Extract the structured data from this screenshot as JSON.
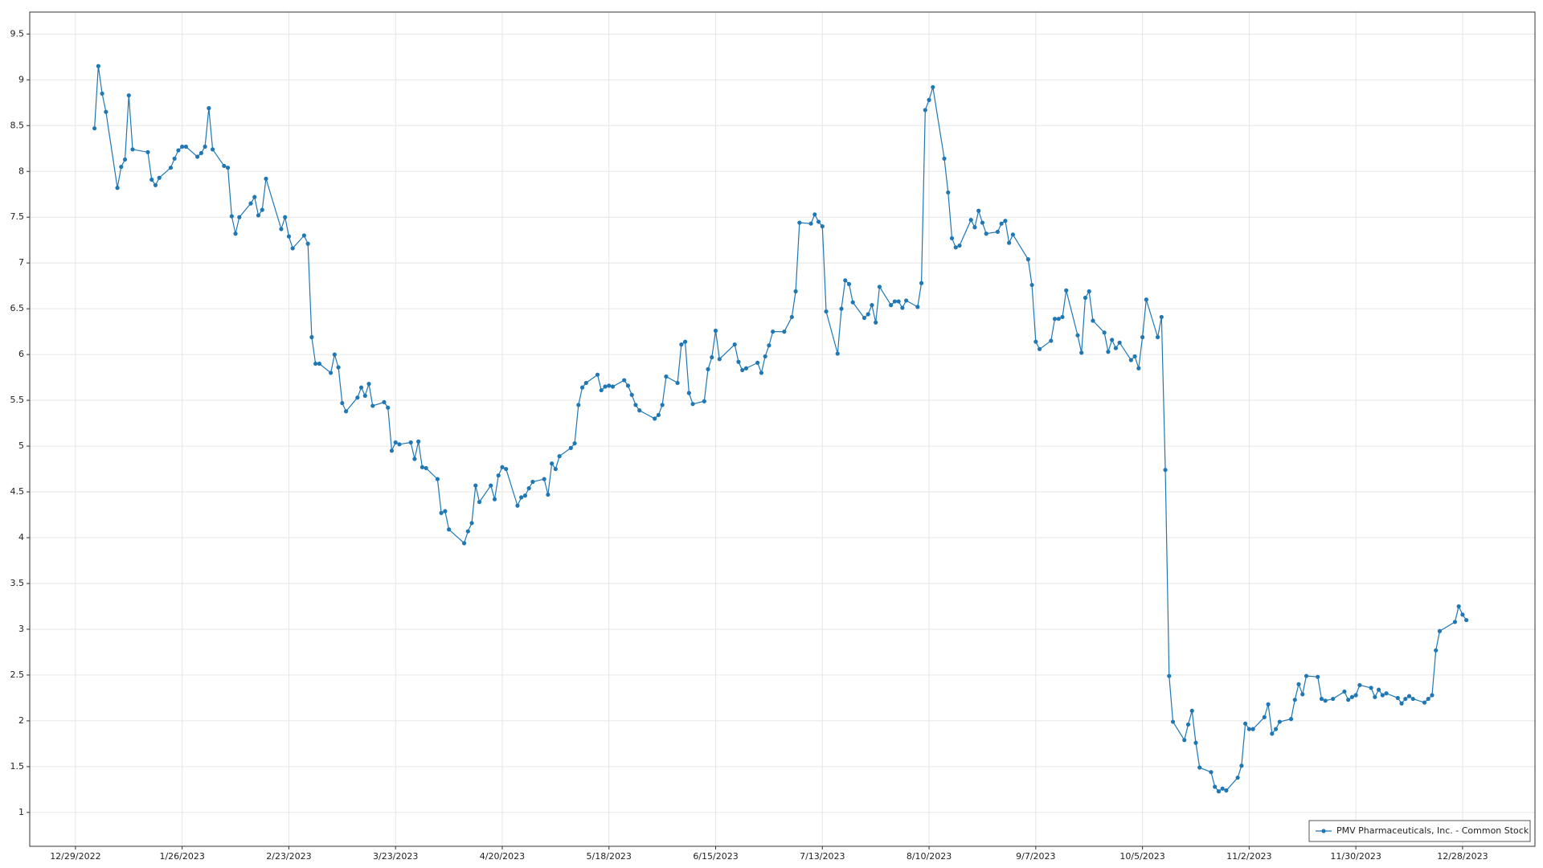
{
  "chart_data": {
    "type": "line",
    "x": [
      "1/3/2023",
      "1/4/2023",
      "1/5/2023",
      "1/6/2023",
      "1/9/2023",
      "1/10/2023",
      "1/11/2023",
      "1/12/2023",
      "1/13/2023",
      "1/17/2023",
      "1/18/2023",
      "1/19/2023",
      "1/20/2023",
      "1/23/2023",
      "1/24/2023",
      "1/25/2023",
      "1/26/2023",
      "1/27/2023",
      "1/30/2023",
      "1/31/2023",
      "2/1/2023",
      "2/2/2023",
      "2/3/2023",
      "2/6/2023",
      "2/7/2023",
      "2/8/2023",
      "2/9/2023",
      "2/10/2023",
      "2/13/2023",
      "2/14/2023",
      "2/15/2023",
      "2/16/2023",
      "2/17/2023",
      "2/21/2023",
      "2/22/2023",
      "2/23/2023",
      "2/24/2023",
      "2/27/2023",
      "2/28/2023",
      "3/1/2023",
      "3/2/2023",
      "3/3/2023",
      "3/6/2023",
      "3/7/2023",
      "3/8/2023",
      "3/9/2023",
      "3/10/2023",
      "3/13/2023",
      "3/14/2023",
      "3/15/2023",
      "3/16/2023",
      "3/17/2023",
      "3/20/2023",
      "3/21/2023",
      "3/22/2023",
      "3/23/2023",
      "3/24/2023",
      "3/27/2023",
      "3/28/2023",
      "3/29/2023",
      "3/30/2023",
      "3/31/2023",
      "4/3/2023",
      "4/4/2023",
      "4/5/2023",
      "4/6/2023",
      "4/10/2023",
      "4/11/2023",
      "4/12/2023",
      "4/13/2023",
      "4/14/2023",
      "4/17/2023",
      "4/18/2023",
      "4/19/2023",
      "4/20/2023",
      "4/21/2023",
      "4/24/2023",
      "4/25/2023",
      "4/26/2023",
      "4/27/2023",
      "4/28/2023",
      "5/1/2023",
      "5/2/2023",
      "5/3/2023",
      "5/4/2023",
      "5/5/2023",
      "5/8/2023",
      "5/9/2023",
      "5/10/2023",
      "5/11/2023",
      "5/12/2023",
      "5/15/2023",
      "5/16/2023",
      "5/17/2023",
      "5/18/2023",
      "5/19/2023",
      "5/22/2023",
      "5/23/2023",
      "5/24/2023",
      "5/25/2023",
      "5/26/2023",
      "5/30/2023",
      "5/31/2023",
      "6/1/2023",
      "6/2/2023",
      "6/5/2023",
      "6/6/2023",
      "6/7/2023",
      "6/8/2023",
      "6/9/2023",
      "6/12/2023",
      "6/13/2023",
      "6/14/2023",
      "6/15/2023",
      "6/16/2023",
      "6/20/2023",
      "6/21/2023",
      "6/22/2023",
      "6/23/2023",
      "6/26/2023",
      "6/27/2023",
      "6/28/2023",
      "6/29/2023",
      "6/30/2023",
      "7/3/2023",
      "7/5/2023",
      "7/6/2023",
      "7/7/2023",
      "7/10/2023",
      "7/11/2023",
      "7/12/2023",
      "7/13/2023",
      "7/14/2023",
      "7/17/2023",
      "7/18/2023",
      "7/19/2023",
      "7/20/2023",
      "7/21/2023",
      "7/24/2023",
      "7/25/2023",
      "7/26/2023",
      "7/27/2023",
      "7/28/2023",
      "7/31/2023",
      "8/1/2023",
      "8/2/2023",
      "8/3/2023",
      "8/4/2023",
      "8/7/2023",
      "8/8/2023",
      "8/9/2023",
      "8/10/2023",
      "8/11/2023",
      "8/14/2023",
      "8/15/2023",
      "8/16/2023",
      "8/17/2023",
      "8/18/2023",
      "8/21/2023",
      "8/22/2023",
      "8/23/2023",
      "8/24/2023",
      "8/25/2023",
      "8/28/2023",
      "8/29/2023",
      "8/30/2023",
      "8/31/2023",
      "9/1/2023",
      "9/5/2023",
      "9/6/2023",
      "9/7/2023",
      "9/8/2023",
      "9/11/2023",
      "9/12/2023",
      "9/13/2023",
      "9/14/2023",
      "9/15/2023",
      "9/18/2023",
      "9/19/2023",
      "9/20/2023",
      "9/21/2023",
      "9/22/2023",
      "9/25/2023",
      "9/26/2023",
      "9/27/2023",
      "9/28/2023",
      "9/29/2023",
      "10/2/2023",
      "10/3/2023",
      "10/4/2023",
      "10/5/2023",
      "10/6/2023",
      "10/9/2023",
      "10/10/2023",
      "10/11/2023",
      "10/12/2023",
      "10/13/2023",
      "10/16/2023",
      "10/17/2023",
      "10/18/2023",
      "10/19/2023",
      "10/20/2023",
      "10/23/2023",
      "10/24/2023",
      "10/25/2023",
      "10/26/2023",
      "10/27/2023",
      "10/30/2023",
      "10/31/2023",
      "11/1/2023",
      "11/2/2023",
      "11/3/2023",
      "11/6/2023",
      "11/7/2023",
      "11/8/2023",
      "11/9/2023",
      "11/10/2023",
      "11/13/2023",
      "11/14/2023",
      "11/15/2023",
      "11/16/2023",
      "11/17/2023",
      "11/20/2023",
      "11/21/2023",
      "11/22/2023",
      "11/24/2023",
      "11/27/2023",
      "11/28/2023",
      "11/29/2023",
      "11/30/2023",
      "12/1/2023",
      "12/4/2023",
      "12/5/2023",
      "12/6/2023",
      "12/7/2023",
      "12/8/2023",
      "12/11/2023",
      "12/12/2023",
      "12/13/2023",
      "12/14/2023",
      "12/15/2023",
      "12/18/2023",
      "12/19/2023",
      "12/20/2023",
      "12/21/2023",
      "12/22/2023",
      "12/26/2023",
      "12/27/2023",
      "12/28/2023",
      "12/29/2023"
    ],
    "series": [
      {
        "name": "PMV Pharmaceuticals, Inc. - Common Stock",
        "color": "#1f77b4",
        "values": [
          8.47,
          9.15,
          8.85,
          8.65,
          7.82,
          8.05,
          8.13,
          8.83,
          8.24,
          8.21,
          7.91,
          7.85,
          7.93,
          8.04,
          8.14,
          8.23,
          8.27,
          8.27,
          8.16,
          8.2,
          8.27,
          8.69,
          8.24,
          8.06,
          8.04,
          7.51,
          7.32,
          7.5,
          7.65,
          7.72,
          7.52,
          7.58,
          7.92,
          7.37,
          7.5,
          7.29,
          7.16,
          7.3,
          7.21,
          6.19,
          5.9,
          5.9,
          5.8,
          6.0,
          5.86,
          5.47,
          5.38,
          5.53,
          5.64,
          5.55,
          5.68,
          5.44,
          5.48,
          5.42,
          4.95,
          5.04,
          5.02,
          5.04,
          4.86,
          5.05,
          4.77,
          4.76,
          4.64,
          4.27,
          4.29,
          4.09,
          3.94,
          4.07,
          4.16,
          4.57,
          4.39,
          4.57,
          4.42,
          4.68,
          4.77,
          4.75,
          4.35,
          4.44,
          4.46,
          4.54,
          4.61,
          4.64,
          4.47,
          4.81,
          4.75,
          4.89,
          4.98,
          5.03,
          5.45,
          5.64,
          5.69,
          5.78,
          5.61,
          5.65,
          5.66,
          5.65,
          5.72,
          5.66,
          5.56,
          5.45,
          5.39,
          5.3,
          5.34,
          5.45,
          5.76,
          5.69,
          6.11,
          6.14,
          5.58,
          5.46,
          5.49,
          5.84,
          5.97,
          6.26,
          5.95,
          6.11,
          5.92,
          5.83,
          5.85,
          5.91,
          5.8,
          5.98,
          6.1,
          6.25,
          6.25,
          6.41,
          6.69,
          7.44,
          7.43,
          7.53,
          7.45,
          7.4,
          6.47,
          6.01,
          6.5,
          6.81,
          6.77,
          6.57,
          6.4,
          6.44,
          6.54,
          6.35,
          6.74,
          6.54,
          6.58,
          6.58,
          6.51,
          6.59,
          6.52,
          6.78,
          8.67,
          8.78,
          8.92,
          8.14,
          7.77,
          7.27,
          7.17,
          7.19,
          7.47,
          7.39,
          7.57,
          7.44,
          7.32,
          7.34,
          7.43,
          7.46,
          7.22,
          7.31,
          7.04,
          6.76,
          6.14,
          6.06,
          6.15,
          6.39,
          6.39,
          6.41,
          6.7,
          6.21,
          6.02,
          6.62,
          6.69,
          6.37,
          6.24,
          6.03,
          6.16,
          6.07,
          6.13,
          5.94,
          5.98,
          5.85,
          6.19,
          6.6,
          6.19,
          6.41,
          4.74,
          2.49,
          1.99,
          1.79,
          1.96,
          2.11,
          1.76,
          1.49,
          1.44,
          1.28,
          1.23,
          1.26,
          1.24,
          1.38,
          1.51,
          1.97,
          1.91,
          1.91,
          2.04,
          2.18,
          1.86,
          1.91,
          1.99,
          2.02,
          2.23,
          2.4,
          2.29,
          2.49,
          2.48,
          2.24,
          2.22,
          2.24,
          2.32,
          2.23,
          2.26,
          2.28,
          2.39,
          2.36,
          2.26,
          2.34,
          2.28,
          2.3,
          2.25,
          2.19,
          2.24,
          2.27,
          2.24,
          2.2,
          2.24,
          2.28,
          2.77,
          2.98,
          3.08,
          3.25,
          3.16,
          3.1
        ]
      }
    ],
    "xlim": [
      "12/17/2022",
      "1/16/2024"
    ],
    "xticks": [
      "12/29/2022",
      "1/26/2023",
      "2/23/2023",
      "3/23/2023",
      "4/20/2023",
      "5/18/2023",
      "6/15/2023",
      "7/13/2023",
      "8/10/2023",
      "9/7/2023",
      "10/5/2023",
      "11/2/2023",
      "11/30/2023",
      "12/28/2023"
    ],
    "ylim": [
      0.63,
      9.74
    ],
    "yticks": [
      1,
      1.5,
      2,
      2.5,
      3,
      3.5,
      4,
      4.5,
      5,
      5.5,
      6,
      6.5,
      7,
      7.5,
      8,
      8.5,
      9,
      9.5
    ],
    "grid": true,
    "markers": true,
    "legend": "lower right"
  }
}
